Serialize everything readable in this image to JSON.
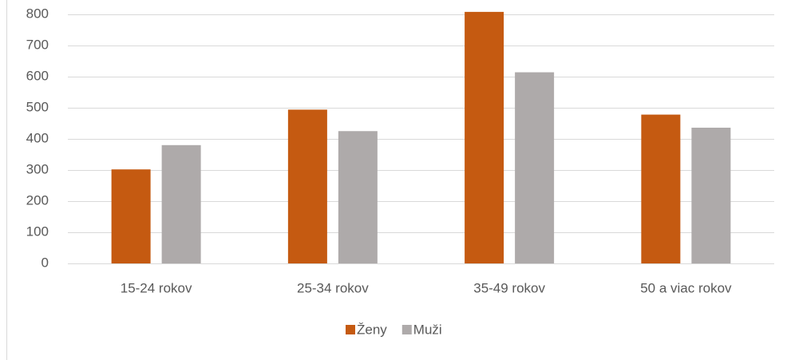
{
  "chart_data": {
    "type": "bar",
    "categories": [
      "15-24 rokov",
      "25-34 rokov",
      "35-49 rokov",
      "50 a viac rokov"
    ],
    "series": [
      {
        "name": "Ženy",
        "color": "#c55a11",
        "values": [
          302,
          494,
          808,
          478
        ]
      },
      {
        "name": "Muži",
        "color": "#aeaaaa",
        "values": [
          380,
          425,
          614,
          436
        ]
      }
    ],
    "ylim": [
      0,
      800
    ],
    "yticks": [
      0,
      100,
      200,
      300,
      400,
      500,
      600,
      700,
      800
    ],
    "grid": true,
    "legend": "bottom"
  }
}
